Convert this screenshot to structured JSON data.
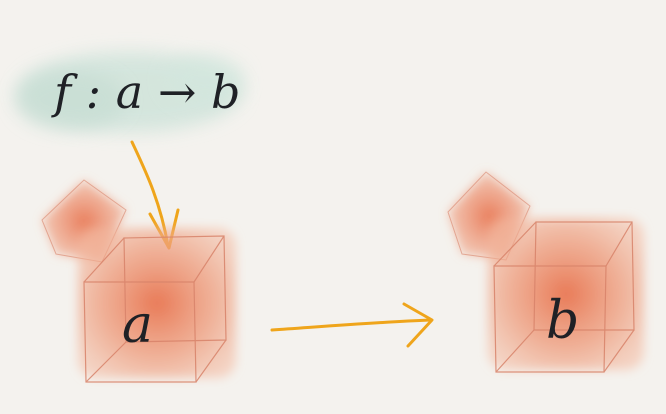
{
  "label_box": {
    "text": "f : a → b"
  },
  "left_box": {
    "label": "a"
  },
  "right_box": {
    "label": "b"
  },
  "colors": {
    "background": "#f4f2ee",
    "label_wash": "#cfe3da",
    "box_fill": "#ec9a7a",
    "box_fill_dark": "#e6805d",
    "box_edge": "#d8836a",
    "arrow": "#efa51b",
    "ink": "#1f2126"
  }
}
